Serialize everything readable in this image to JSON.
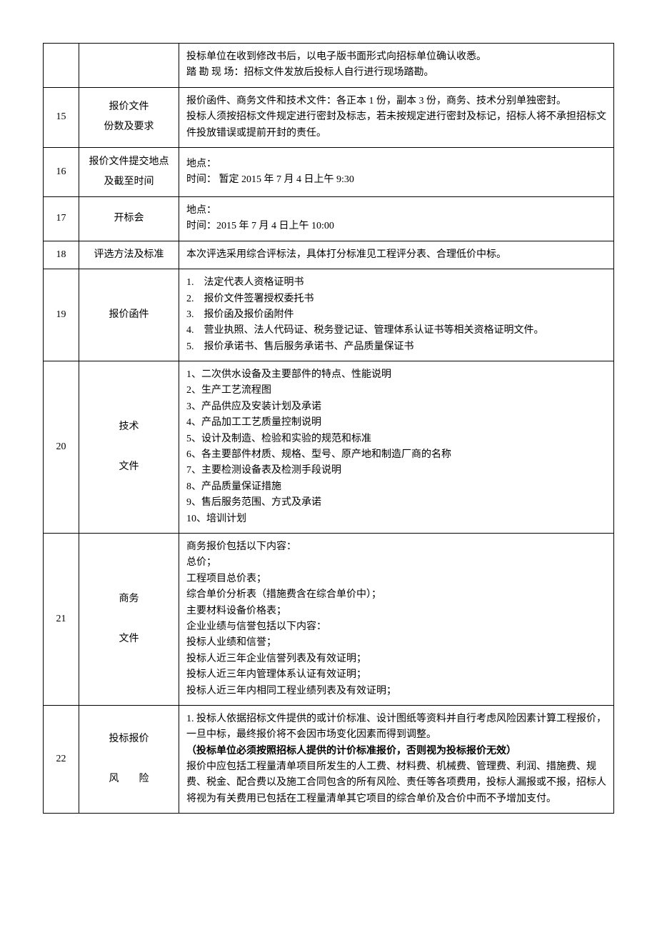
{
  "rows": [
    {
      "num": "",
      "title": "",
      "content": [
        "投标单位在收到修改书后，以电子版书面形式向招标单位确认收悉。",
        "踏 勘 现 场：招标文件发放后投标人自行进行现场踏勘。"
      ]
    },
    {
      "num": "15",
      "title_line1": "报价文件",
      "title_line2": "份数及要求",
      "content": [
        "报价函件、商务文件和技术文件：各正本  1  份，副本 3 份，商务、技术分别单独密封。",
        "投标人须按招标文件规定进行密封及标志，若未按规定进行密封及标记，招标人将不承担招标文件投放错误或提前开封的责任。"
      ]
    },
    {
      "num": "16",
      "title_line1": "报价文件提交地点",
      "title_line2": "及截至时间",
      "content": [
        "地点：",
        "时间：  暂定 2015 年 7 月 4 日上午 9:30"
      ]
    },
    {
      "num": "17",
      "title": "开标会",
      "content": [
        "地点：",
        "时间：2015 年 7 月 4 日上午 10:00"
      ]
    },
    {
      "num": "18",
      "title": "评选方法及标准",
      "content": [
        "本次评选采用综合评标法，具体打分标准见工程评分表、合理低价中标。"
      ]
    },
    {
      "num": "19",
      "title": "报价函件",
      "content": [
        "1.　法定代表人资格证明书",
        "2.　报价文件签署授权委托书",
        "3.　报价函及报价函附件",
        "4.　营业执照、法人代码证、税务登记证、管理体系认证书等相关资格证明文件。",
        "5.　报价承诺书、售后服务承诺书、产品质量保证书"
      ]
    },
    {
      "num": "20",
      "title_line1": "技术",
      "title_line2": "文件",
      "content": [
        "1、二次供水设备及主要部件的特点、性能说明",
        "2、生产工艺流程图",
        "3、产品供应及安装计划及承诺",
        "4、产品加工工艺质量控制说明",
        "5、设计及制造、检验和实验的规范和标准",
        "6、各主要部件材质、规格、型号、原产地和制造厂商的名称",
        "7、主要检测设备表及检测手段说明",
        "8、产品质量保证措施",
        "9、售后服务范围、方式及承诺",
        "10、培训计划"
      ]
    },
    {
      "num": "21",
      "title_line1": "商务",
      "title_line2": "文件",
      "content": [
        "商务报价包括以下内容：",
        "总价；",
        "工程项目总价表；",
        "综合单价分析表（措施费含在综合单价中）；",
        "主要材料设备价格表；",
        "企业业绩与信誉包括以下内容：",
        "投标人业绩和信誉；",
        "投标人近三年企业信誉列表及有效证明；",
        "投标人近三年内管理体系认证有效证明；",
        "投标人近三年内相同工程业绩列表及有效证明；"
      ]
    },
    {
      "num": "22",
      "title_line1": "投标报价",
      "title_line2": "风　　险",
      "content_plain": [
        "1. 投标人依据招标文件提供的或计价标准、设计图纸等资料并自行考虑风险因素计算工程报价，一旦中标，最终报价将不会因市场变化因素而得到调整。"
      ],
      "content_bold": "（投标单位必须按照招标人提供的计价标准报价，否则视为投标报价无效）",
      "content_plain2": [
        "报价中应包括工程量清单项目所发生的人工费、材料费、机械费、管理费、利润、措施费、规费、税金、配合费以及施工合同包含的所有风险、责任等各项费用，投标人漏报或不报，招标人将视为有关费用已包括在工程量清单其它项目的综合单价及合价中而不予增加支付。"
      ]
    }
  ]
}
